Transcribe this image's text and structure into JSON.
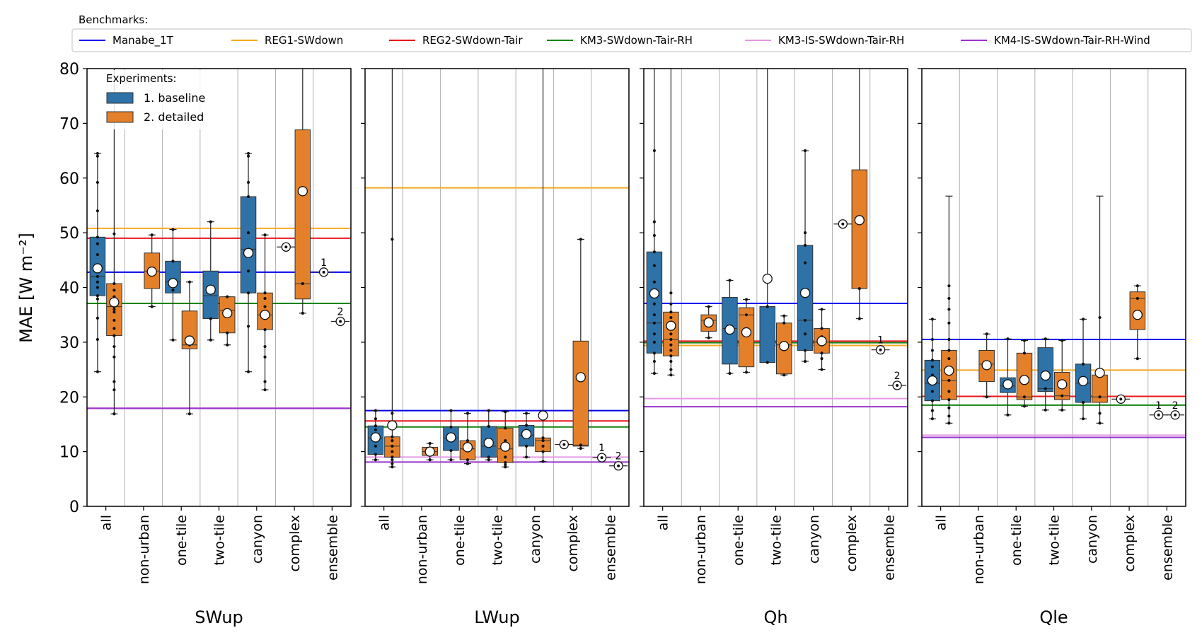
{
  "benchmarks_title": "Benchmarks:",
  "experiments_title": "Experiments:",
  "y_label": "MAE [W m⁻²]",
  "chart_data": {
    "type": "box",
    "ylim": [
      0,
      80
    ],
    "yticks": [
      0,
      10,
      20,
      30,
      40,
      50,
      60,
      70,
      80
    ],
    "categories": [
      "all",
      "non-urban",
      "one-tile",
      "two-tile",
      "canyon",
      "complex",
      "ensemble"
    ],
    "experiments": [
      {
        "label": "1. baseline",
        "color": "#2e72a8"
      },
      {
        "label": "2. detailed",
        "color": "#e5802a"
      }
    ],
    "benchmarks": [
      {
        "name": "Manabe_1T",
        "color": "#0000ee"
      },
      {
        "name": "REG1-SWdown",
        "color": "#f5a820"
      },
      {
        "name": "REG2-SWdown-Tair",
        "color": "#e8161e"
      },
      {
        "name": "KM3-SWdown-Tair-RH",
        "color": "#138313"
      },
      {
        "name": "KM3-IS-SWdown-Tair-RH",
        "color": "#e39ae6"
      },
      {
        "name": "KM4-IS-SWdown-Tair-RH-Wind",
        "color": "#9a33cc"
      }
    ],
    "panels": [
      {
        "xlabel": "SWup",
        "benchmark_values": [
          42.8,
          50.8,
          49.0,
          37.1,
          18.0,
          17.9
        ],
        "boxes": [
          {
            "cat": 0,
            "exp": 0,
            "q1": 38.5,
            "med": 42.0,
            "q3": 49.2,
            "wlo": 24.6,
            "whi": 64.5,
            "mean": 43.5,
            "pts": [
              24.6,
              30.5,
              34.4,
              37.9,
              38.5,
              40.0,
              41.0,
              42.0,
              43.5,
              44.0,
              46.0,
              48.0,
              49.2,
              54.0,
              59.2,
              64.0,
              64.5
            ]
          },
          {
            "cat": 0,
            "exp": 1,
            "q1": 31.2,
            "med": 36.5,
            "q3": 40.7,
            "wlo": 16.9,
            "whi": 80.0,
            "mean": 37.3,
            "pts": [
              16.9,
              21.3,
              22.8,
              27.3,
              29.2,
              31.2,
              32.5,
              34.0,
              35.5,
              36.0,
              36.5,
              37.5,
              38.3,
              39.5,
              40.7,
              49.8
            ]
          },
          {
            "cat": 1,
            "exp": 1,
            "q1": 39.8,
            "med": 43.0,
            "q3": 46.3,
            "wlo": 36.5,
            "whi": 49.6,
            "mean": 42.9,
            "pts": [
              36.5,
              49.6
            ]
          },
          {
            "cat": 2,
            "exp": 0,
            "q1": 39.0,
            "med": 41.0,
            "q3": 44.8,
            "wlo": 30.4,
            "whi": 50.6,
            "mean": 40.8,
            "pts": [
              30.4,
              39.5,
              41.0,
              44.8,
              50.6
            ]
          },
          {
            "cat": 2,
            "exp": 1,
            "q1": 28.8,
            "med": 29.5,
            "q3": 35.7,
            "wlo": 16.9,
            "whi": 41.0,
            "mean": 30.3,
            "pts": [
              16.9,
              29.5,
              41.0
            ]
          },
          {
            "cat": 3,
            "exp": 0,
            "q1": 34.3,
            "med": 38.5,
            "q3": 43.0,
            "wlo": 30.4,
            "whi": 52.0,
            "mean": 39.6,
            "pts": [
              30.4,
              34.3,
              52.0
            ]
          },
          {
            "cat": 3,
            "exp": 1,
            "q1": 31.7,
            "med": 35.8,
            "q3": 38.3,
            "wlo": 29.5,
            "whi": 38.3,
            "mean": 35.3,
            "pts": [
              29.5,
              31.7,
              35.8,
              38.3
            ]
          },
          {
            "cat": 4,
            "exp": 0,
            "q1": 39.0,
            "med": 47.0,
            "q3": 56.6,
            "wlo": 24.6,
            "whi": 64.5,
            "mean": 46.3,
            "pts": [
              24.6,
              32.9,
              39.0,
              43.0,
              47.0,
              50.0,
              56.6,
              59.2,
              64.0,
              64.5
            ]
          },
          {
            "cat": 4,
            "exp": 1,
            "q1": 32.3,
            "med": 35.0,
            "q3": 39.0,
            "wlo": 21.3,
            "whi": 49.6,
            "mean": 35.0,
            "pts": [
              21.3,
              22.8,
              27.3,
              29.2,
              32.3,
              35.0,
              36.5,
              38.0,
              39.0,
              49.6
            ]
          },
          {
            "cat": 5,
            "exp": 1,
            "q1": 37.9,
            "med": 40.7,
            "q3": 68.8,
            "wlo": 35.3,
            "whi": 80.0,
            "mean": 57.6,
            "pts": [
              35.3,
              40.7
            ]
          }
        ],
        "singles": [
          {
            "cat": 5,
            "exp": 0,
            "mean": 47.4,
            "label": ""
          },
          {
            "cat": 6,
            "exp": 0,
            "mean": 42.8,
            "label": "1"
          },
          {
            "cat": 6,
            "exp": 1,
            "mean": 33.8,
            "label": "2"
          }
        ]
      },
      {
        "xlabel": "LWup",
        "benchmark_values": [
          17.5,
          58.2,
          15.6,
          14.5,
          9.0,
          8.1
        ],
        "boxes": [
          {
            "cat": 0,
            "exp": 0,
            "q1": 9.5,
            "med": 12.5,
            "q3": 14.7,
            "wlo": 8.5,
            "whi": 17.5,
            "mean": 12.6,
            "pts": [
              8.5,
              9.5,
              11.0,
              12.5,
              14.0,
              14.7,
              16.0,
              17.5
            ]
          },
          {
            "cat": 0,
            "exp": 1,
            "q1": 9.0,
            "med": 11.0,
            "q3": 12.7,
            "wlo": 7.2,
            "whi": 80.0,
            "mean": 14.8,
            "pts": [
              7.2,
              7.8,
              8.5,
              9.0,
              10.0,
              11.0,
              12.0,
              12.7,
              15.0,
              17.0,
              48.8
            ]
          },
          {
            "cat": 1,
            "exp": 1,
            "q1": 9.3,
            "med": 10.0,
            "q3": 10.8,
            "wlo": 8.5,
            "whi": 11.5,
            "mean": 10.0,
            "pts": [
              8.5,
              11.5
            ]
          },
          {
            "cat": 2,
            "exp": 0,
            "q1": 10.2,
            "med": 12.5,
            "q3": 14.5,
            "wlo": 8.5,
            "whi": 17.5,
            "mean": 12.6,
            "pts": [
              8.5,
              10.2,
              12.5,
              14.5,
              17.5
            ]
          },
          {
            "cat": 2,
            "exp": 1,
            "q1": 8.5,
            "med": 10.5,
            "q3": 12.0,
            "wlo": 7.8,
            "whi": 17.0,
            "mean": 10.8,
            "pts": [
              7.8,
              8.5,
              10.5,
              12.0,
              17.0
            ]
          },
          {
            "cat": 3,
            "exp": 0,
            "q1": 9.0,
            "med": 11.0,
            "q3": 14.6,
            "wlo": 8.5,
            "whi": 17.5,
            "mean": 11.6,
            "pts": [
              8.5,
              9.0,
              11.0,
              14.6,
              17.5
            ]
          },
          {
            "cat": 3,
            "exp": 1,
            "q1": 8.0,
            "med": 10.5,
            "q3": 14.3,
            "wlo": 7.2,
            "whi": 17.3,
            "mean": 10.9,
            "pts": [
              7.2,
              7.6,
              8.0,
              9.0,
              10.5,
              12.0,
              14.3,
              17.3
            ]
          },
          {
            "cat": 4,
            "exp": 0,
            "q1": 11.0,
            "med": 13.0,
            "q3": 14.8,
            "wlo": 9.0,
            "whi": 17.0,
            "mean": 13.2,
            "pts": [
              9.0,
              11.0,
              13.0,
              14.8,
              17.0
            ]
          },
          {
            "cat": 4,
            "exp": 1,
            "q1": 10.0,
            "med": 12.0,
            "q3": 12.5,
            "wlo": 8.2,
            "whi": 80.0,
            "mean": 16.6,
            "pts": [
              8.2,
              10.0,
              11.0,
              12.0,
              12.5
            ]
          },
          {
            "cat": 5,
            "exp": 1,
            "q1": 11.0,
            "med": 11.2,
            "q3": 30.2,
            "wlo": 10.6,
            "whi": 48.8,
            "mean": 23.6,
            "pts": [
              10.6,
              11.2,
              48.8
            ]
          }
        ],
        "singles": [
          {
            "cat": 5,
            "exp": 0,
            "mean": 11.3,
            "label": ""
          },
          {
            "cat": 6,
            "exp": 0,
            "mean": 8.9,
            "label": "1"
          },
          {
            "cat": 6,
            "exp": 1,
            "mean": 7.4,
            "label": "2"
          }
        ]
      },
      {
        "xlabel": "Qh",
        "benchmark_values": [
          37.1,
          29.4,
          30.2,
          29.9,
          19.7,
          18.2
        ],
        "boxes": [
          {
            "cat": 0,
            "exp": 0,
            "q1": 28.0,
            "med": 33.5,
            "q3": 46.5,
            "wlo": 24.3,
            "whi": 80.0,
            "mean": 38.9,
            "pts": [
              24.3,
              26.5,
              28.0,
              30.0,
              31.5,
              33.5,
              35.0,
              37.0,
              39.5,
              41.0,
              44.0,
              46.5,
              49.5,
              52.0,
              65.0
            ]
          },
          {
            "cat": 0,
            "exp": 1,
            "q1": 27.5,
            "med": 30.5,
            "q3": 35.5,
            "wlo": 24.0,
            "whi": 80.0,
            "mean": 33.0,
            "pts": [
              24.0,
              25.0,
              26.5,
              27.5,
              28.5,
              29.5,
              30.5,
              31.5,
              32.5,
              33.5,
              34.5,
              35.5,
              37.0,
              39.0
            ]
          },
          {
            "cat": 1,
            "exp": 1,
            "q1": 32.0,
            "med": 34.0,
            "q3": 35.0,
            "wlo": 30.8,
            "whi": 36.5,
            "mean": 33.6,
            "pts": [
              30.8,
              36.5
            ]
          },
          {
            "cat": 2,
            "exp": 0,
            "q1": 26.0,
            "med": 32.5,
            "q3": 38.2,
            "wlo": 24.3,
            "whi": 41.3,
            "mean": 32.3,
            "pts": [
              24.3,
              32.5,
              41.3
            ]
          },
          {
            "cat": 2,
            "exp": 1,
            "q1": 25.5,
            "med": 35.0,
            "q3": 36.3,
            "wlo": 24.5,
            "whi": 37.8,
            "mean": 31.8,
            "pts": [
              24.5,
              35.0,
              37.8
            ]
          },
          {
            "cat": 3,
            "exp": 0,
            "q1": 26.3,
            "med": 36.5,
            "q3": 36.5,
            "wlo": 26.3,
            "whi": 80.0,
            "mean": 41.6,
            "pts": [
              26.3,
              36.5
            ]
          },
          {
            "cat": 3,
            "exp": 1,
            "q1": 24.2,
            "med": 29.5,
            "q3": 33.5,
            "wlo": 24.0,
            "whi": 34.8,
            "mean": 29.3,
            "pts": [
              24.0,
              29.5,
              33.5,
              34.8
            ]
          },
          {
            "cat": 4,
            "exp": 0,
            "q1": 28.5,
            "med": 34.0,
            "q3": 47.7,
            "wlo": 26.5,
            "whi": 65.0,
            "mean": 39.0,
            "pts": [
              26.5,
              28.5,
              31.5,
              34.0,
              39.5,
              44.5,
              47.7,
              50.0,
              65.0
            ]
          },
          {
            "cat": 4,
            "exp": 1,
            "q1": 28.0,
            "med": 30.0,
            "q3": 32.5,
            "wlo": 25.0,
            "whi": 36.0,
            "mean": 30.2,
            "pts": [
              25.0,
              27.0,
              28.0,
              29.5,
              31.0,
              32.5,
              36.0
            ]
          },
          {
            "cat": 5,
            "exp": 1,
            "q1": 39.8,
            "med": 39.8,
            "q3": 61.5,
            "wlo": 34.3,
            "whi": 80.0,
            "mean": 52.3,
            "pts": [
              34.3,
              39.8
            ]
          }
        ],
        "singles": [
          {
            "cat": 5,
            "exp": 0,
            "mean": 51.6,
            "label": ""
          },
          {
            "cat": 6,
            "exp": 0,
            "mean": 28.6,
            "label": "1"
          },
          {
            "cat": 6,
            "exp": 1,
            "mean": 22.1,
            "label": "2"
          }
        ]
      },
      {
        "xlabel": "Qle",
        "benchmark_values": [
          30.5,
          24.9,
          20.1,
          18.5,
          13.0,
          12.6
        ],
        "boxes": [
          {
            "cat": 0,
            "exp": 0,
            "q1": 19.3,
            "med": 22.5,
            "q3": 26.7,
            "wlo": 16.0,
            "whi": 34.2,
            "mean": 23.0,
            "pts": [
              16.0,
              17.5,
              19.3,
              21.0,
              22.5,
              24.0,
              25.5,
              26.7,
              28.5,
              30.5,
              34.2
            ]
          },
          {
            "cat": 0,
            "exp": 1,
            "q1": 19.5,
            "med": 23.0,
            "q3": 28.5,
            "wlo": 15.2,
            "whi": 56.7,
            "mean": 24.8,
            "pts": [
              15.2,
              16.5,
              18.0,
              19.5,
              21.0,
              23.0,
              25.0,
              27.0,
              28.5,
              30.5,
              33.5,
              36.0,
              38.0,
              40.3
            ]
          },
          {
            "cat": 1,
            "exp": 1,
            "q1": 22.8,
            "med": 26.0,
            "q3": 28.5,
            "wlo": 20.0,
            "whi": 31.5,
            "mean": 25.8,
            "pts": [
              20.0,
              31.5
            ]
          },
          {
            "cat": 2,
            "exp": 0,
            "q1": 20.8,
            "med": 22.0,
            "q3": 23.5,
            "wlo": 16.7,
            "whi": 30.6,
            "mean": 22.3,
            "pts": [
              16.7,
              22.0,
              30.6
            ]
          },
          {
            "cat": 2,
            "exp": 1,
            "q1": 19.5,
            "med": 20.0,
            "q3": 28.0,
            "wlo": 18.3,
            "whi": 30.3,
            "mean": 23.1,
            "pts": [
              18.3,
              20.0,
              28.0,
              30.3
            ]
          },
          {
            "cat": 3,
            "exp": 0,
            "q1": 21.0,
            "med": 21.5,
            "q3": 29.0,
            "wlo": 17.6,
            "whi": 30.6,
            "mean": 23.9,
            "pts": [
              17.6,
              21.5,
              30.6
            ]
          },
          {
            "cat": 3,
            "exp": 1,
            "q1": 19.5,
            "med": 20.2,
            "q3": 24.5,
            "wlo": 17.6,
            "whi": 30.3,
            "mean": 22.3,
            "pts": [
              17.6,
              20.2,
              30.3
            ]
          },
          {
            "cat": 4,
            "exp": 0,
            "q1": 19.0,
            "med": 22.5,
            "q3": 26.0,
            "wlo": 16.0,
            "whi": 34.2,
            "mean": 22.9,
            "pts": [
              16.0,
              19.0,
              22.5,
              26.0,
              34.2
            ]
          },
          {
            "cat": 4,
            "exp": 1,
            "q1": 19.0,
            "med": 20.0,
            "q3": 24.0,
            "wlo": 15.2,
            "whi": 56.7,
            "mean": 24.4,
            "pts": [
              15.2,
              17.0,
              20.0,
              24.0,
              34.5
            ]
          },
          {
            "cat": 5,
            "exp": 1,
            "q1": 32.3,
            "med": 38.0,
            "q3": 39.2,
            "wlo": 27.0,
            "whi": 40.3,
            "mean": 35.0,
            "pts": [
              27.0,
              38.0,
              40.3
            ]
          }
        ],
        "singles": [
          {
            "cat": 5,
            "exp": 0,
            "mean": 19.6,
            "label": ""
          },
          {
            "cat": 6,
            "exp": 0,
            "mean": 16.7,
            "label": "1"
          },
          {
            "cat": 6,
            "exp": 1,
            "mean": 16.7,
            "label": "2"
          }
        ]
      }
    ]
  }
}
